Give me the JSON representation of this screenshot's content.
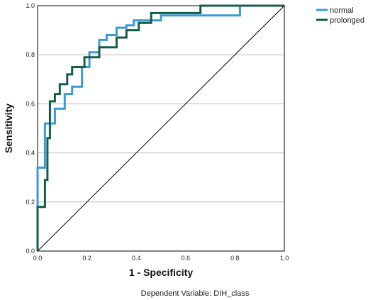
{
  "chart_data": {
    "type": "line",
    "title": "",
    "xlabel": "1 - Specificity",
    "ylabel": "Sensitivity",
    "xlim": [
      0,
      1
    ],
    "ylim": [
      0,
      1
    ],
    "x_ticks": [
      "0.0",
      "0.2",
      "0.4",
      "0.6",
      "0.8",
      "1.0"
    ],
    "y_ticks": [
      "0.0",
      "0.2",
      "0.4",
      "0.6",
      "0.8",
      "1.0"
    ],
    "grid": "horizontal",
    "legend_position": "top-right",
    "footnote": "Dependent Variable: DIH_class",
    "series": [
      {
        "name": "normal",
        "color": "#3a9ad9",
        "points": [
          [
            0,
            0
          ],
          [
            0,
            0.34
          ],
          [
            0.03,
            0.34
          ],
          [
            0.03,
            0.52
          ],
          [
            0.07,
            0.52
          ],
          [
            0.07,
            0.58
          ],
          [
            0.11,
            0.58
          ],
          [
            0.11,
            0.64
          ],
          [
            0.14,
            0.64
          ],
          [
            0.14,
            0.67
          ],
          [
            0.18,
            0.67
          ],
          [
            0.18,
            0.75
          ],
          [
            0.21,
            0.75
          ],
          [
            0.21,
            0.81
          ],
          [
            0.25,
            0.81
          ],
          [
            0.25,
            0.86
          ],
          [
            0.28,
            0.86
          ],
          [
            0.28,
            0.88
          ],
          [
            0.32,
            0.88
          ],
          [
            0.32,
            0.91
          ],
          [
            0.36,
            0.91
          ],
          [
            0.36,
            0.92
          ],
          [
            0.39,
            0.92
          ],
          [
            0.39,
            0.94
          ],
          [
            0.5,
            0.94
          ],
          [
            0.5,
            0.96
          ],
          [
            0.82,
            0.96
          ],
          [
            0.82,
            1.0
          ],
          [
            1.0,
            1.0
          ]
        ]
      },
      {
        "name": "prolonged",
        "color": "#165c4a",
        "points": [
          [
            0,
            0
          ],
          [
            0,
            0.18
          ],
          [
            0.03,
            0.18
          ],
          [
            0.03,
            0.29
          ],
          [
            0.04,
            0.29
          ],
          [
            0.04,
            0.46
          ],
          [
            0.05,
            0.46
          ],
          [
            0.05,
            0.61
          ],
          [
            0.07,
            0.61
          ],
          [
            0.07,
            0.64
          ],
          [
            0.09,
            0.64
          ],
          [
            0.09,
            0.68
          ],
          [
            0.12,
            0.68
          ],
          [
            0.12,
            0.72
          ],
          [
            0.14,
            0.72
          ],
          [
            0.14,
            0.75
          ],
          [
            0.19,
            0.75
          ],
          [
            0.19,
            0.79
          ],
          [
            0.25,
            0.79
          ],
          [
            0.25,
            0.83
          ],
          [
            0.32,
            0.83
          ],
          [
            0.32,
            0.87
          ],
          [
            0.36,
            0.87
          ],
          [
            0.36,
            0.9
          ],
          [
            0.41,
            0.9
          ],
          [
            0.41,
            0.93
          ],
          [
            0.46,
            0.93
          ],
          [
            0.46,
            0.97
          ],
          [
            0.66,
            0.97
          ],
          [
            0.66,
            1.0
          ],
          [
            1.0,
            1.0
          ]
        ]
      },
      {
        "name": "",
        "color": "#000000",
        "points": [
          [
            0,
            0
          ],
          [
            1,
            1
          ]
        ]
      }
    ]
  }
}
